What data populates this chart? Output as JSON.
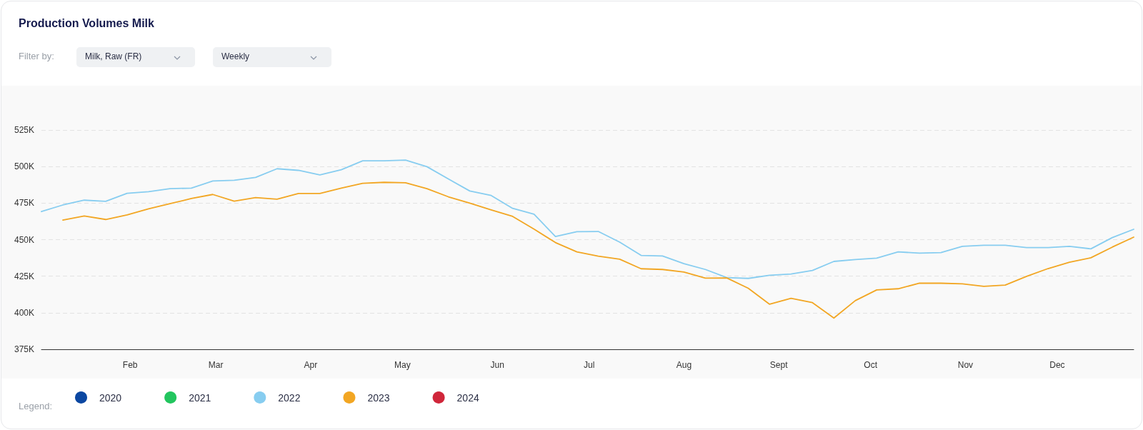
{
  "chart_data": {
    "type": "line",
    "title": "Production Volumes Milk",
    "annotations": [
      "Filter by:",
      "Milk, Raw (FR)",
      "Weekly",
      "Legend:"
    ],
    "x": [
      "--01-03",
      "--01-10",
      "--01-17",
      "--01-24",
      "--01-31",
      "--02-07",
      "--02-14",
      "--02-21",
      "--02-28",
      "--03-07",
      "--03-14",
      "--03-21",
      "--03-28",
      "--04-04",
      "--04-11",
      "--04-18",
      "--04-25",
      "--05-02",
      "--05-09",
      "--05-16",
      "--05-23",
      "--05-30",
      "--06-06",
      "--06-13",
      "--06-20",
      "--06-27",
      "--07-04",
      "--07-11",
      "--07-18",
      "--07-25",
      "--08-01",
      "--08-08",
      "--08-15",
      "--08-22",
      "--08-29",
      "--09-05",
      "--09-12",
      "--09-19",
      "--09-26",
      "--10-03",
      "--10-10",
      "--10-17",
      "--10-24",
      "--10-31",
      "--11-07",
      "--11-14",
      "--11-21",
      "--11-28",
      "--12-05",
      "--12-12",
      "--12-19",
      "--12-26"
    ],
    "series": [
      {
        "name": "2020",
        "color": "#0b47a1",
        "values": [
          null,
          null,
          null,
          null,
          null,
          null,
          null,
          null,
          null,
          null,
          null,
          null,
          null,
          null,
          null,
          null,
          null,
          null,
          null,
          null,
          null,
          null,
          null,
          null,
          null,
          null,
          null,
          null,
          null,
          null,
          null,
          null,
          null,
          null,
          null,
          null,
          null,
          null,
          null,
          null,
          null,
          null,
          null,
          null,
          null,
          null,
          null,
          null,
          null,
          null,
          null,
          null
        ]
      },
      {
        "name": "2021",
        "color": "#22c55e",
        "values": [
          null,
          null,
          null,
          null,
          null,
          null,
          null,
          null,
          null,
          null,
          null,
          null,
          null,
          null,
          null,
          null,
          null,
          null,
          null,
          null,
          null,
          null,
          null,
          null,
          null,
          null,
          null,
          null,
          null,
          null,
          null,
          null,
          null,
          null,
          null,
          null,
          null,
          null,
          null,
          null,
          null,
          null,
          null,
          null,
          null,
          null,
          null,
          null,
          null,
          null,
          null,
          null
        ]
      },
      {
        "name": "2022",
        "color": "#87cdf0",
        "values": [
          469200,
          473700,
          477000,
          476200,
          481700,
          482800,
          484900,
          485200,
          490100,
          490600,
          492600,
          498500,
          497400,
          494300,
          497800,
          503900,
          503900,
          504400,
          499900,
          491500,
          483300,
          480200,
          471400,
          467400,
          452100,
          455400,
          455600,
          448300,
          439200,
          438800,
          433600,
          429600,
          424000,
          423500,
          425600,
          426500,
          428900,
          435100,
          436400,
          437400,
          441600,
          440800,
          441100,
          445400,
          446200,
          446200,
          444600,
          444600,
          445400,
          443700,
          451400,
          457100
        ]
      },
      {
        "name": "2023",
        "color": "#f2a623",
        "values": [
          null,
          463400,
          466200,
          463800,
          466900,
          471100,
          474600,
          478100,
          480900,
          476300,
          478800,
          477700,
          481600,
          481600,
          485200,
          488500,
          489200,
          488900,
          484900,
          479300,
          475000,
          470300,
          465900,
          457200,
          448000,
          441600,
          438700,
          436600,
          430100,
          429600,
          427800,
          423700,
          423800,
          416800,
          405800,
          409900,
          406900,
          396400,
          408300,
          415600,
          416400,
          420200,
          420200,
          419800,
          418100,
          418900,
          424900,
          430200,
          434600,
          437600,
          444900,
          451700
        ]
      },
      {
        "name": "2024",
        "color": "#d0263a",
        "values": [
          null,
          null,
          null,
          null,
          null,
          null,
          null,
          null,
          null,
          null,
          null,
          null,
          null,
          null,
          null,
          null,
          null,
          null,
          null,
          null,
          null,
          null,
          null,
          null,
          null,
          null,
          null,
          null,
          null,
          null,
          null,
          null,
          null,
          null,
          null,
          null,
          null,
          null,
          null,
          null,
          null,
          null,
          null,
          null,
          null,
          null,
          null,
          null,
          null,
          null,
          null,
          null
        ]
      }
    ],
    "xlim": [
      "--01-03",
      "--12-26"
    ],
    "xticks": [
      {
        "value": "--02-01",
        "label": "Feb"
      },
      {
        "value": "--03-01",
        "label": "Mar"
      },
      {
        "value": "--04-01",
        "label": "Apr"
      },
      {
        "value": "--05-01",
        "label": "May"
      },
      {
        "value": "--06-01",
        "label": "Jun"
      },
      {
        "value": "--07-01",
        "label": "Jul"
      },
      {
        "value": "--08-01",
        "label": "Aug"
      },
      {
        "value": "--09-01",
        "label": "Sept"
      },
      {
        "value": "--10-01",
        "label": "Oct"
      },
      {
        "value": "--11-01",
        "label": "Nov"
      },
      {
        "value": "--12-01",
        "label": "Dec"
      }
    ],
    "ylim": [
      375000,
      525000
    ],
    "yticks": [
      {
        "value": 375000,
        "label": "375K"
      },
      {
        "value": 400000,
        "label": "400K"
      },
      {
        "value": 425000,
        "label": "425K"
      },
      {
        "value": 450000,
        "label": "450K"
      },
      {
        "value": 475000,
        "label": "475K"
      },
      {
        "value": 500000,
        "label": "500K"
      },
      {
        "value": 525000,
        "label": "525K"
      }
    ],
    "grid": "y",
    "legend": "bottom left",
    "marker": "none",
    "line_style": "solid"
  }
}
